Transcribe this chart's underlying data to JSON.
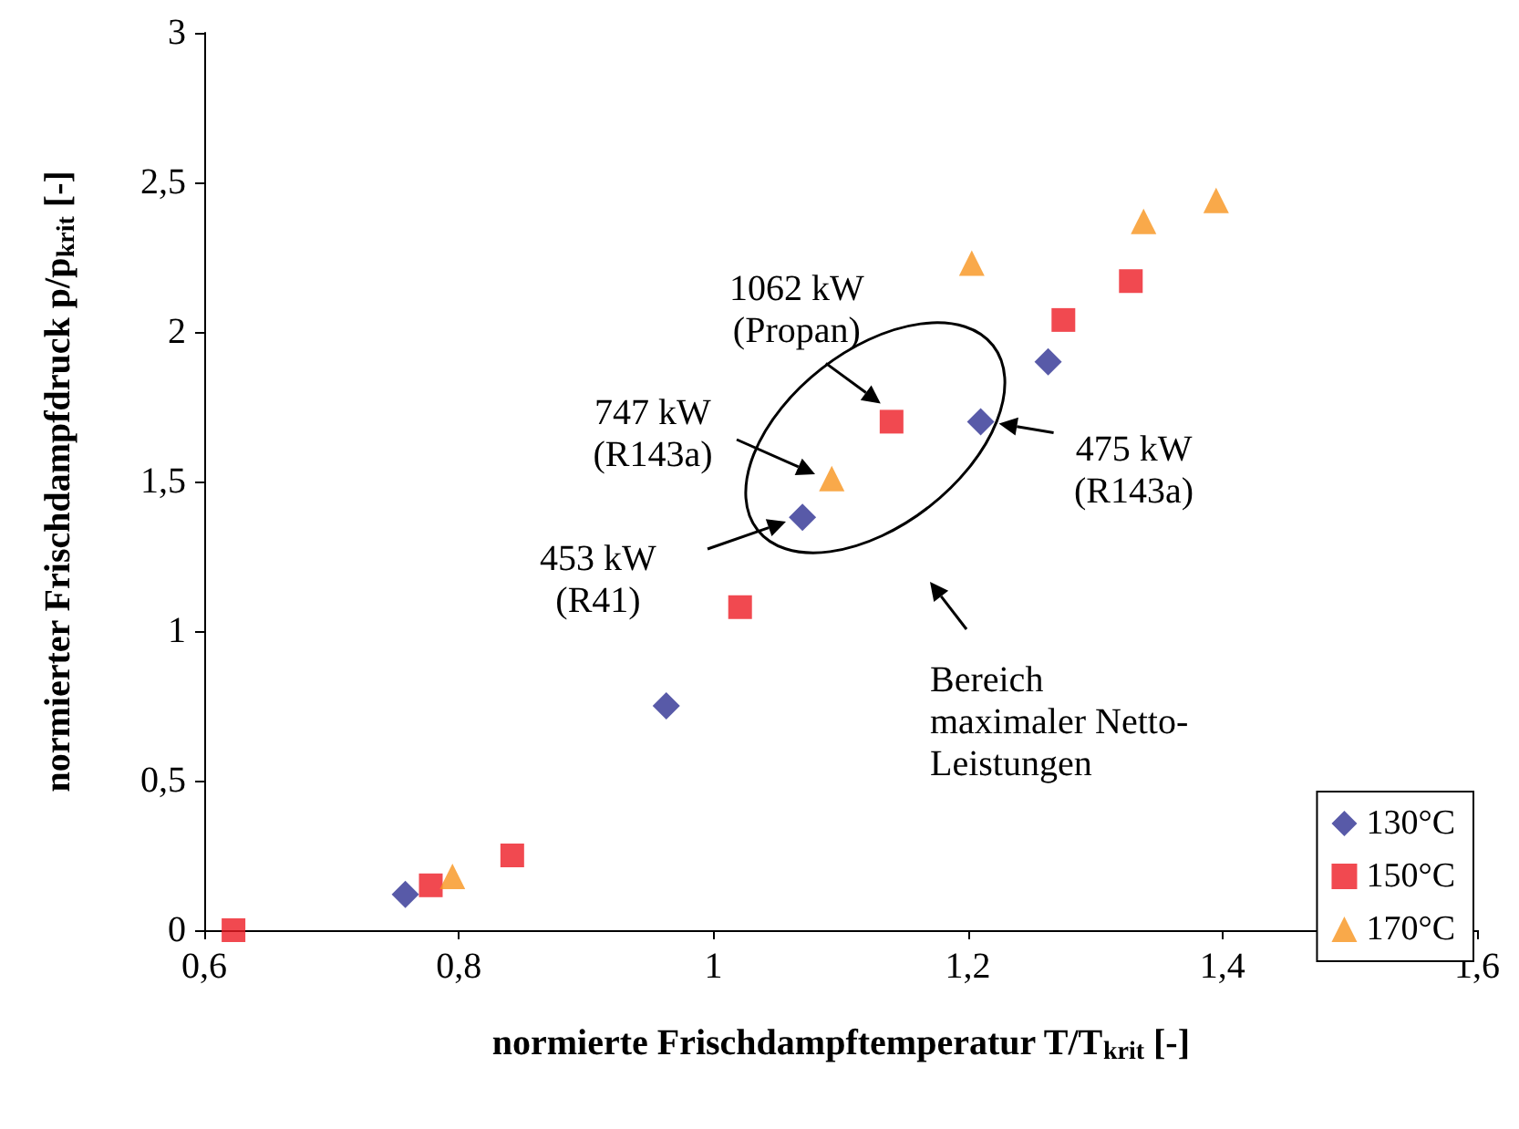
{
  "chart_data": {
    "type": "scatter",
    "xlabel": "normierte Frischdampftemperatur T/T$_{krit}$ [-]",
    "ylabel": "normierter Frischdampfdruck p/p$_{krit}$ [-]",
    "xlim": [
      0.6,
      1.6
    ],
    "ylim": [
      0,
      3
    ],
    "xticks": [
      {
        "value": 0.6,
        "label": "0,6"
      },
      {
        "value": 0.8,
        "label": "0,8"
      },
      {
        "value": 1,
        "label": "1"
      },
      {
        "value": 1.2,
        "label": "1,2"
      },
      {
        "value": 1.4,
        "label": "1,4"
      },
      {
        "value": 1.6,
        "label": "1,6"
      }
    ],
    "yticks": [
      {
        "value": 0,
        "label": "0"
      },
      {
        "value": 0.5,
        "label": "0,5"
      },
      {
        "value": 1,
        "label": "1"
      },
      {
        "value": 1.5,
        "label": "1,5"
      },
      {
        "value": 2,
        "label": "2"
      },
      {
        "value": 2.5,
        "label": "2,5"
      },
      {
        "value": 3,
        "label": "3"
      }
    ],
    "grid": false,
    "legend": "bottom right",
    "series": [
      {
        "name": "130°C",
        "color": "#2e3192",
        "marker": "diamond",
        "x": [
          0.758,
          0.963,
          1.07,
          1.21,
          1.263
        ],
        "values": [
          0.12,
          0.75,
          1.38,
          1.7,
          1.9
        ]
      },
      {
        "name": "150°C",
        "color": "#ed1c24",
        "marker": "square",
        "x": [
          0.623,
          0.778,
          0.842,
          1.021,
          1.14,
          1.275,
          1.328
        ],
        "values": [
          0,
          0.15,
          0.25,
          1.08,
          1.7,
          2.04,
          2.17
        ]
      },
      {
        "name": "170°C",
        "color": "#f7941d",
        "marker": "triangle",
        "x": [
          0.795,
          1.093,
          1.203,
          1.338,
          1.395
        ],
        "values": [
          0.18,
          1.51,
          2.23,
          2.37,
          2.44
        ]
      }
    ],
    "annotations": [
      {
        "text": "1062 kW\n(Propan)",
        "x": 1.14,
        "y": 1.7
      },
      "747 kW\n(R143a)",
      "453 kW\n(R41)",
      {
        "text": "475 kW\n(R143a)",
        "x": 1.21,
        "y": 1.7
      },
      "Bereich\nmaximaler Netto-\nLeistungen"
    ]
  }
}
